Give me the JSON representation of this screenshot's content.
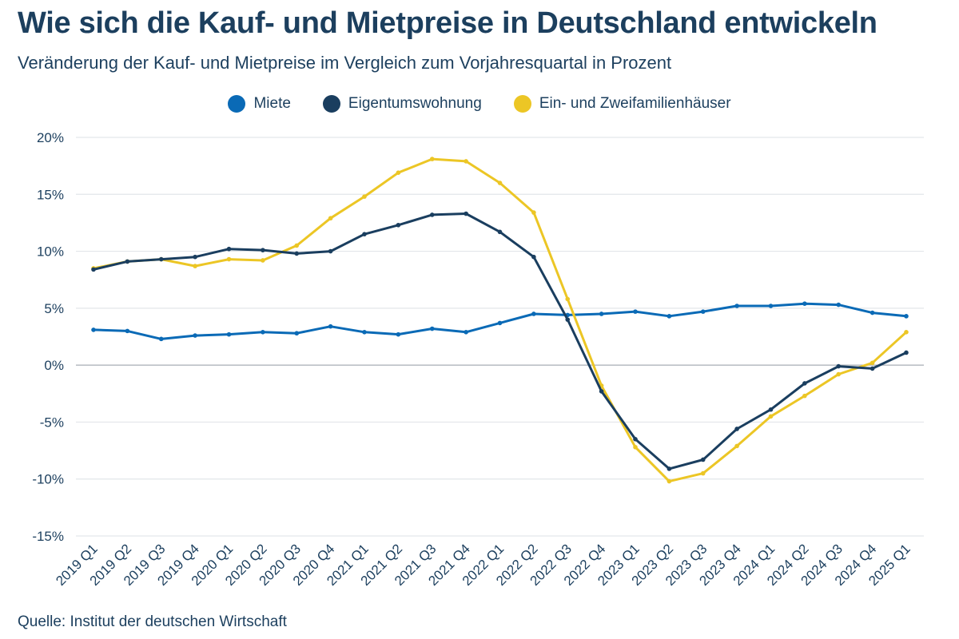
{
  "title": "Wie sich die Kauf- und Mietpreise in Deutschland entwickeln",
  "subtitle": "Veränderung der Kauf- und Mietpreise im Vergleich zum Vorjahresquartal in Prozent",
  "source": "Quelle: Institut der deutschen Wirtschaft",
  "chart_data": {
    "type": "line",
    "title": "Wie sich die Kauf- und Mietpreise in Deutschland entwickeln",
    "subtitle": "Veränderung der Kauf- und Mietpreise im Vergleich zum Vorjahresquartal in Prozent",
    "legend_position": "top",
    "grid": true,
    "ylim": [
      -15,
      20
    ],
    "yticks": [
      20,
      15,
      10,
      5,
      0,
      -5,
      -10,
      -15
    ],
    "ytick_labels": [
      "20%",
      "15%",
      "10%",
      "5%",
      "0%",
      "-5%",
      "-10%",
      "-15%"
    ],
    "categories": [
      "2019 Q1",
      "2019 Q2",
      "2019 Q3",
      "2019 Q4",
      "2020 Q1",
      "2020 Q2",
      "2020 Q3",
      "2020 Q4",
      "2021 Q1",
      "2021 Q2",
      "2021 Q3",
      "2021 Q4",
      "2022 Q1",
      "2022 Q2",
      "2022 Q3",
      "2022 Q4",
      "2023 Q1",
      "2023 Q2",
      "2023 Q3",
      "2023 Q4",
      "2024 Q1",
      "2024 Q2",
      "2024 Q3",
      "2024 Q4",
      "2025 Q1"
    ],
    "series": [
      {
        "name": "Miete",
        "color": "#0a6ab6",
        "values": [
          3.1,
          3.0,
          2.3,
          2.6,
          2.7,
          2.9,
          2.8,
          3.4,
          2.9,
          2.7,
          3.2,
          2.9,
          3.7,
          4.5,
          4.4,
          4.5,
          4.7,
          4.3,
          4.7,
          5.2,
          5.2,
          5.4,
          5.3,
          4.6,
          4.3
        ]
      },
      {
        "name": "Eigentumswohnung",
        "color": "#1a3e5f",
        "values": [
          8.4,
          9.1,
          9.3,
          9.5,
          10.2,
          10.1,
          9.8,
          10.0,
          11.5,
          12.3,
          13.2,
          13.3,
          11.7,
          9.5,
          4.0,
          -2.3,
          -6.5,
          -9.1,
          -8.3,
          -5.6,
          -3.9,
          -1.6,
          -0.1,
          -0.3,
          1.1
        ]
      },
      {
        "name": "Ein- und Zweifamilienhäuser",
        "color": "#ecc625",
        "values": [
          8.5,
          9.1,
          9.3,
          8.7,
          9.3,
          9.2,
          10.5,
          12.9,
          14.8,
          16.9,
          18.1,
          17.9,
          16.0,
          13.4,
          5.8,
          -1.8,
          -7.2,
          -10.2,
          -9.5,
          -7.1,
          -4.5,
          -2.7,
          -0.8,
          0.2,
          2.9
        ]
      }
    ]
  }
}
